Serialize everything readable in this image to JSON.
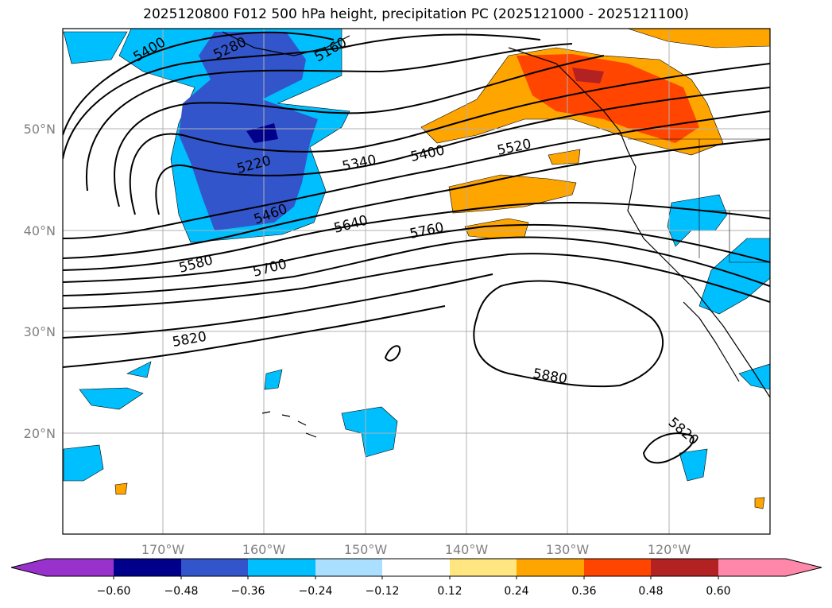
{
  "title": "2025120800 F012 500 hPa height, precipitation PC (2025121000 - 2025121100)",
  "map": {
    "lat_ticks": [
      "50°N",
      "40°N",
      "30°N",
      "20°N"
    ],
    "lon_ticks": [
      "170°W",
      "160°W",
      "150°W",
      "140°W",
      "130°W",
      "120°W"
    ],
    "contour_labels": [
      "5400",
      "5280",
      "5160",
      "5220",
      "5340",
      "5400",
      "5520",
      "5460",
      "5640",
      "5760",
      "5580",
      "5700",
      "5820",
      "5880",
      "5820"
    ],
    "contour_color": "#000000",
    "grid": true
  },
  "colorbar": {
    "ticks": [
      "−0.60",
      "−0.48",
      "−0.36",
      "−0.24",
      "−0.12",
      "0.12",
      "0.24",
      "0.36",
      "0.48",
      "0.60"
    ],
    "colors": [
      "#9932cc",
      "#00008b",
      "#3355cc",
      "#00bfff",
      "#aadfff",
      "#ffffff",
      "#ffe680",
      "#ffa500",
      "#ff4500",
      "#b22222",
      "#ff88aa"
    ]
  }
}
